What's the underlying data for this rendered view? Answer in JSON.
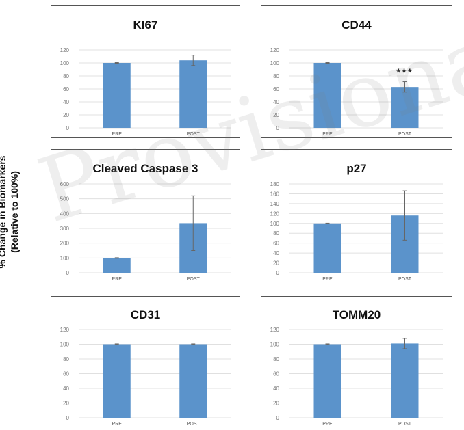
{
  "y_axis_label": [
    "% Change in Biomarkers",
    "(Relative to 100%)"
  ],
  "watermark": "Provisional",
  "bar_color": "#5b93cb",
  "chart_data": [
    {
      "type": "bar",
      "title": "KI67",
      "categories": [
        "PRE",
        "POST"
      ],
      "values": [
        100,
        104
      ],
      "errors": [
        0.5,
        8
      ],
      "ylim": [
        0,
        120
      ],
      "ticks": [
        0,
        20,
        40,
        60,
        80,
        100,
        120
      ],
      "annotation": ""
    },
    {
      "type": "bar",
      "title": "CD44",
      "categories": [
        "PRE",
        "POST"
      ],
      "values": [
        100,
        63
      ],
      "errors": [
        0.5,
        8
      ],
      "ylim": [
        0,
        120
      ],
      "ticks": [
        0,
        20,
        40,
        60,
        80,
        100,
        120
      ],
      "annotation": "***"
    },
    {
      "type": "bar",
      "title": "Cleaved Caspase 3",
      "categories": [
        "PRE",
        "POST"
      ],
      "values": [
        100,
        335
      ],
      "errors": [
        2,
        185
      ],
      "ylim": [
        0,
        600
      ],
      "ticks": [
        0,
        100,
        200,
        300,
        400,
        500,
        600
      ],
      "annotation": ""
    },
    {
      "type": "bar",
      "title": "p27",
      "categories": [
        "PRE",
        "POST"
      ],
      "values": [
        100,
        116
      ],
      "errors": [
        0.5,
        50
      ],
      "ylim": [
        0,
        180
      ],
      "ticks": [
        0,
        20,
        40,
        60,
        80,
        100,
        120,
        140,
        160,
        180
      ],
      "annotation": ""
    },
    {
      "type": "bar",
      "title": "CD31",
      "categories": [
        "PRE",
        "POST"
      ],
      "values": [
        100,
        100
      ],
      "errors": [
        0.5,
        0.5
      ],
      "ylim": [
        0,
        120
      ],
      "ticks": [
        0,
        20,
        40,
        60,
        80,
        100,
        120
      ],
      "annotation": ""
    },
    {
      "type": "bar",
      "title": "TOMM20",
      "categories": [
        "PRE",
        "POST"
      ],
      "values": [
        100,
        101
      ],
      "errors": [
        0.5,
        7
      ],
      "ylim": [
        0,
        120
      ],
      "ticks": [
        0,
        20,
        40,
        60,
        80,
        100,
        120
      ],
      "annotation": ""
    }
  ]
}
